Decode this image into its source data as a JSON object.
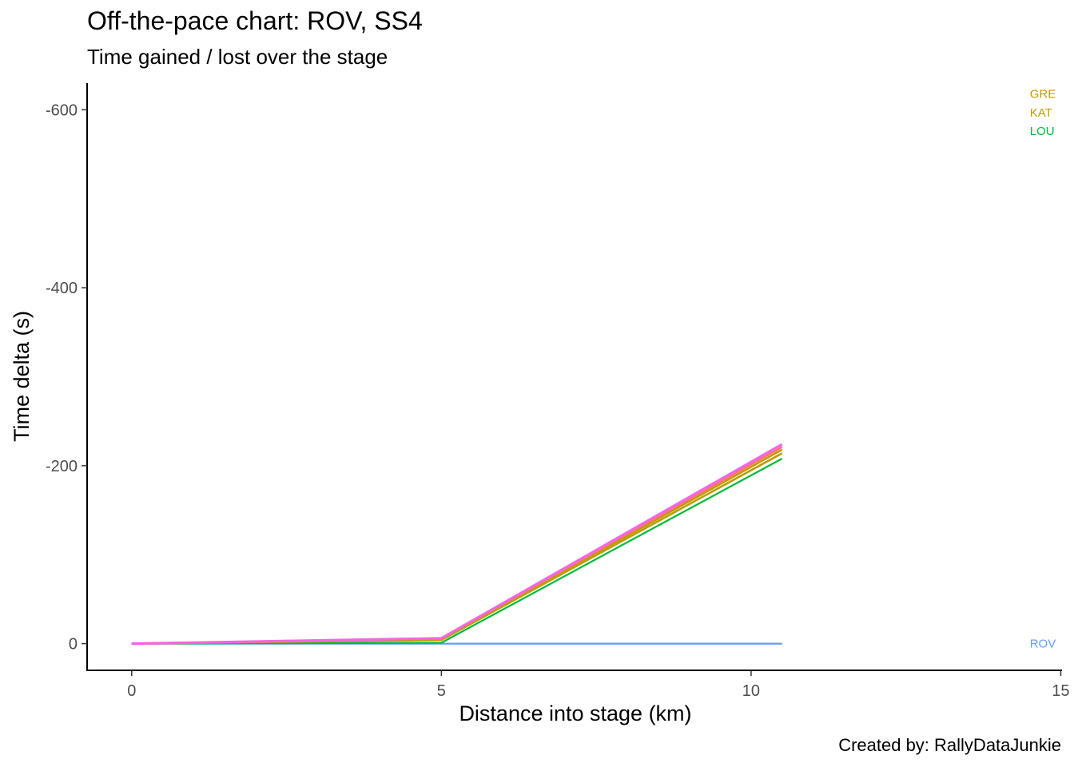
{
  "chart_data": {
    "type": "line",
    "title": "Off-the-pace chart: ROV, SS4",
    "subtitle": "Time gained / lost over the stage",
    "xlabel": "Distance into stage (km)",
    "ylabel": "Time delta (s)",
    "caption": "Created by: RallyDataJunkie",
    "xlim": [
      -0.72,
      15.02
    ],
    "ylim": [
      30,
      -630
    ],
    "y_reversed": true,
    "x_ticks": [
      0,
      5,
      10,
      15
    ],
    "y_ticks": [
      0,
      -200,
      -400,
      -600
    ],
    "y_tick_labels": [
      "0",
      "-200",
      "-400",
      "-600"
    ],
    "grid": false,
    "series": [
      {
        "name": "ROV",
        "color": "#619CFF",
        "width": 2.2,
        "x": [
          0,
          5,
          10.5
        ],
        "y": [
          0,
          0,
          0
        ]
      },
      {
        "name": "LOU",
        "color": "#00BA38",
        "width": 2.2,
        "x": [
          0,
          5,
          10.5
        ],
        "y": [
          0,
          -1,
          -208
        ]
      },
      {
        "name": "KAT",
        "color": "#B79F00",
        "width": 2.6,
        "x": [
          0,
          5,
          10.5
        ],
        "y": [
          0,
          -4,
          -214
        ]
      },
      {
        "name": "GRE",
        "color": "#C49A00",
        "width": 2.6,
        "x": [
          0,
          5,
          10.5
        ],
        "y": [
          0,
          -5,
          -218
        ]
      },
      {
        "name": "",
        "color": "#F8766D",
        "width": 2.6,
        "x": [
          0,
          5,
          10.5
        ],
        "y": [
          0,
          -6,
          -221
        ]
      },
      {
        "name": "",
        "color": "#F564E3",
        "width": 3.2,
        "x": [
          0,
          5,
          10.5
        ],
        "y": [
          0,
          -6,
          -224
        ]
      }
    ],
    "end_labels": [
      {
        "text": "GRE",
        "color": "#C49A00",
        "y": -618
      },
      {
        "text": "KAT",
        "color": "#B79F00",
        "y": -597
      },
      {
        "text": "LOU",
        "color": "#00BA38",
        "y": -576
      },
      {
        "text": "ROV",
        "color": "#619CFF",
        "y": 0
      }
    ],
    "end_label_x": 14.5
  }
}
